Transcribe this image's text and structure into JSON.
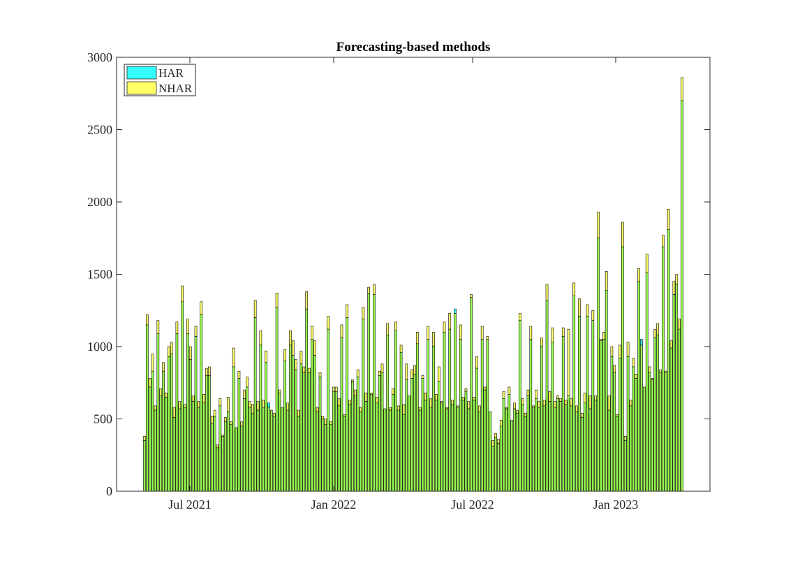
{
  "chart_data": {
    "type": "bar",
    "title": "Forecasting-based methods",
    "xlabel": "",
    "ylabel": "",
    "ylim": [
      0,
      3000
    ],
    "yticks": [
      "0",
      "500",
      "1000",
      "1500",
      "2000",
      "2500",
      "3000"
    ],
    "xticks": [
      "Jul 2021",
      "Jan 2022",
      "Jul 2022",
      "Jan 2023"
    ],
    "grid": false,
    "legend_location": "top-left",
    "colors": {
      "har": "#33ffff",
      "nhar": "#ffff66",
      "overlap": "#99ff4d",
      "edge": "#000000"
    },
    "series": [
      {
        "name": "HAR",
        "values": [
          350,
          1150,
          720,
          830,
          560,
          1090,
          660,
          830,
          650,
          930,
          950,
          510,
          1090,
          570,
          1310,
          580,
          1090,
          910,
          620,
          1070,
          580,
          1220,
          610,
          800,
          800,
          470,
          520,
          300,
          590,
          380,
          480,
          550,
          460,
          860,
          440,
          780,
          450,
          640,
          720,
          580,
          540,
          1200,
          560,
          1010,
          580,
          890,
          610,
          560,
          520,
          1270,
          680,
          580,
          900,
          560,
          1010,
          940,
          840,
          520,
          880,
          820,
          1260,
          820,
          1050,
          940,
          550,
          790,
          500,
          460,
          1120,
          460,
          690,
          690,
          590,
          1060,
          520,
          1200,
          600,
          760,
          660,
          790,
          550,
          1190,
          620,
          1370,
          670,
          1360,
          610,
          800,
          820,
          570,
          1080,
          560,
          670,
          1110,
          560,
          960,
          530,
          770,
          660,
          780,
          810,
          1020,
          560,
          780,
          630,
          1050,
          580,
          1000,
          630,
          760,
          610,
          1100,
          570,
          1120,
          600,
          1260,
          580,
          1050,
          630,
          690,
          570,
          1340,
          630,
          850,
          550,
          1050,
          700,
          1050,
          550,
          310,
          370,
          330,
          450,
          640,
          570,
          670,
          490,
          570,
          540,
          1180,
          600,
          520,
          660,
          1050,
          580,
          640,
          580,
          1000,
          590,
          1320,
          620,
          1030,
          580,
          640,
          620,
          1070,
          600,
          660,
          590,
          1350,
          550,
          1210,
          510,
          610,
          1210,
          570,
          1180,
          630,
          1750,
          1040,
          1050,
          1390,
          560,
          930,
          820,
          520,
          920,
          1690,
          350,
          930,
          590,
          860,
          780,
          1450,
          1050,
          720,
          1510,
          820,
          770,
          1060,
          1080,
          820,
          1690,
          820,
          1810,
          990,
          1360,
          1430,
          1120,
          2700
        ]
      },
      {
        "name": "NHAR",
        "values": [
          380,
          1220,
          780,
          950,
          590,
          1180,
          710,
          890,
          680,
          1000,
          1030,
          580,
          1170,
          620,
          1420,
          600,
          1190,
          1000,
          660,
          1140,
          620,
          1310,
          670,
          850,
          860,
          520,
          560,
          320,
          640,
          390,
          510,
          650,
          480,
          990,
          440,
          830,
          480,
          700,
          790,
          620,
          600,
          1320,
          620,
          1110,
          630,
          970,
          580,
          560,
          540,
          1370,
          700,
          580,
          980,
          610,
          1110,
          1040,
          910,
          560,
          970,
          860,
          1380,
          850,
          1140,
          1040,
          580,
          820,
          520,
          500,
          1210,
          480,
          720,
          720,
          640,
          1150,
          530,
          1290,
          630,
          770,
          700,
          840,
          580,
          1270,
          680,
          1410,
          680,
          1430,
          650,
          830,
          880,
          570,
          1160,
          580,
          710,
          1170,
          590,
          1010,
          600,
          880,
          660,
          840,
          870,
          1100,
          580,
          800,
          680,
          1140,
          640,
          1100,
          670,
          860,
          620,
          1170,
          580,
          1230,
          630,
          1230,
          590,
          1150,
          650,
          710,
          620,
          1360,
          650,
          930,
          590,
          1140,
          720,
          1070,
          550,
          350,
          400,
          360,
          490,
          690,
          580,
          720,
          490,
          610,
          560,
          1230,
          640,
          540,
          700,
          1140,
          590,
          700,
          620,
          1060,
          630,
          1430,
          690,
          1130,
          620,
          660,
          640,
          1130,
          630,
          1120,
          640,
          1440,
          590,
          1330,
          540,
          680,
          1290,
          660,
          1250,
          660,
          1930,
          1050,
          1100,
          1520,
          660,
          1000,
          870,
          530,
          1010,
          1860,
          380,
          1030,
          630,
          920,
          810,
          1540,
          1010,
          720,
          1640,
          860,
          780,
          1120,
          1160,
          840,
          1770,
          830,
          1950,
          1040,
          1450,
          1500,
          1190,
          2860
        ]
      }
    ]
  }
}
